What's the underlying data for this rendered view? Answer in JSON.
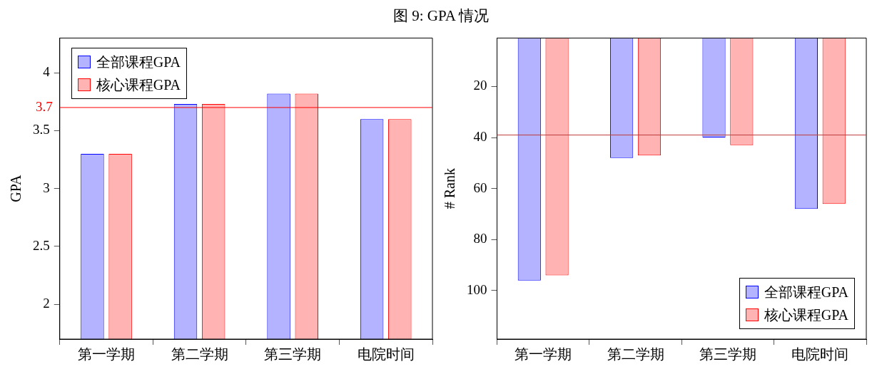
{
  "chart_data": [
    {
      "type": "bar",
      "title": "图 9: GPA 情况",
      "categories": [
        "第一学期",
        "第二学期",
        "第三学期",
        "电院时间"
      ],
      "ylabel": "GPA",
      "ylim": [
        1.7,
        4.3
      ],
      "yticks": [
        2,
        2.5,
        3,
        3.5,
        4
      ],
      "grid": false,
      "legend": "top left",
      "series": [
        {
          "name": "全部课程GPA",
          "color": "#b3b3ff",
          "values": [
            3.3,
            3.73,
            3.82,
            3.6
          ]
        },
        {
          "name": "核心课程GPA",
          "color": "#ffb3b3",
          "values": [
            3.3,
            3.73,
            3.82,
            3.6
          ]
        }
      ],
      "ref_lines": [
        {
          "axis": "y",
          "value": 3.7,
          "label": "3.7",
          "color": "#ff0000"
        }
      ]
    },
    {
      "type": "bar",
      "categories": [
        "第一学期",
        "第二学期",
        "第三学期",
        "电院时间"
      ],
      "ylabel": "# Rank",
      "ylim": [
        119,
        1
      ],
      "yticks": [
        20,
        40,
        60,
        80,
        100
      ],
      "grid": false,
      "legend": "bottom right",
      "series": [
        {
          "name": "全部课程GPA",
          "color": "#b3b3ff",
          "values": [
            96,
            48,
            40,
            68
          ]
        },
        {
          "name": "核心课程GPA",
          "color": "#ffb3b3",
          "values": [
            94,
            47,
            43,
            66
          ]
        }
      ],
      "ref_lines": [
        {
          "axis": "y",
          "value": 39,
          "color": "#bf3f3f"
        }
      ]
    }
  ]
}
